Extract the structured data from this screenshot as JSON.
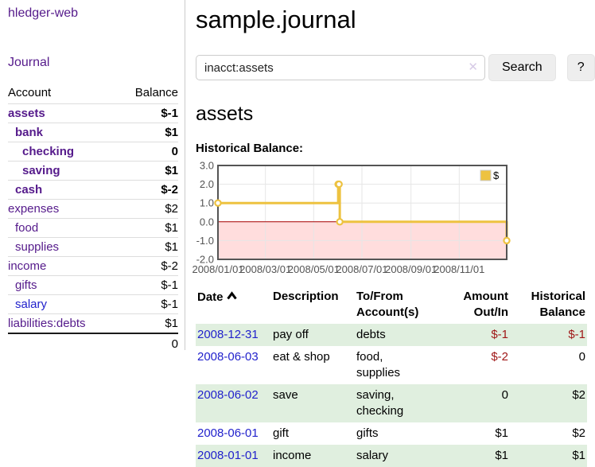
{
  "colors": {
    "accent_purple": "#551a8b",
    "link_blue": "#2222cc",
    "negative_dark": "#a01818",
    "negative_light": "#c46a6a",
    "row_green": "#e0efdf",
    "chart_line": "#edc240",
    "chart_negative_fill": "#ffdddd",
    "chart_zero_line": "#aa0000",
    "chart_border": "#545454",
    "chart_grid": "#e6e6e6",
    "axis_label": "#545454",
    "divider": "#dddddd"
  },
  "sidebar": {
    "brand": "hledger-web",
    "journal_link": "Journal",
    "header": {
      "account": "Account",
      "balance": "Balance"
    },
    "accounts": [
      {
        "name": "assets",
        "balance": "$-1",
        "depth": 1,
        "bold": true,
        "negative": true,
        "blue": false
      },
      {
        "name": "bank",
        "balance": "$1",
        "depth": 2,
        "bold": true,
        "negative": false,
        "blue": false
      },
      {
        "name": "checking",
        "balance": "0",
        "depth": 3,
        "bold": true,
        "negative": false,
        "blue": false
      },
      {
        "name": "saving",
        "balance": "$1",
        "depth": 3,
        "bold": true,
        "negative": false,
        "blue": false
      },
      {
        "name": "cash",
        "balance": "$-2",
        "depth": 2,
        "bold": true,
        "negative": true,
        "blue": false
      },
      {
        "name": "expenses",
        "balance": "$2",
        "depth": 1,
        "bold": false,
        "negative": false,
        "blue": false
      },
      {
        "name": "food",
        "balance": "$1",
        "depth": 2,
        "bold": false,
        "negative": false,
        "blue": false
      },
      {
        "name": "supplies",
        "balance": "$1",
        "depth": 2,
        "bold": false,
        "negative": false,
        "blue": false
      },
      {
        "name": "income",
        "balance": "$-2",
        "depth": 1,
        "bold": false,
        "negative": true,
        "blue": false
      },
      {
        "name": "gifts",
        "balance": "$-1",
        "depth": 2,
        "bold": false,
        "negative": true,
        "blue": false
      },
      {
        "name": "salary",
        "balance": "$-1",
        "depth": 2,
        "bold": false,
        "negative": true,
        "blue": true
      },
      {
        "name": "liabilities:debts",
        "balance": "$1",
        "depth": 1,
        "bold": false,
        "negative": false,
        "blue": false
      }
    ],
    "total": "0"
  },
  "main": {
    "title": "sample.journal",
    "search": {
      "value": "inacct:assets",
      "clear_icon": "✕",
      "search_label": "Search",
      "help_label": "?"
    },
    "account_title": "assets",
    "chart_heading": "Historical Balance:"
  },
  "chart_data": {
    "type": "line",
    "title": "Historical Balance",
    "step": true,
    "series": [
      {
        "name": "$",
        "points": [
          [
            "2008-01-01",
            1
          ],
          [
            "2008-06-01",
            2
          ],
          [
            "2008-06-02",
            2
          ],
          [
            "2008-06-03",
            0
          ],
          [
            "2008-12-31",
            -1
          ]
        ]
      }
    ],
    "x_range": [
      "2008-01-01",
      "2008-12-31"
    ],
    "x_ticks": [
      {
        "date": "2008-01-01",
        "label": "2008/01/01"
      },
      {
        "date": "2008-03-01",
        "label": "2008/03/01"
      },
      {
        "date": "2008-05-01",
        "label": "2008/05/01"
      },
      {
        "date": "2008-07-01",
        "label": "2008/07/01"
      },
      {
        "date": "2008-09-01",
        "label": "2008/09/01"
      },
      {
        "date": "2008-11-01",
        "label": "2008/11/01"
      }
    ],
    "y_ticks": [
      3.0,
      2.0,
      1.0,
      0.0,
      -1.0,
      -2.0
    ],
    "ylim": [
      -2,
      3
    ],
    "grid": true,
    "legend": {
      "position": "top-right",
      "label": "$"
    },
    "negative_region": true
  },
  "register": {
    "columns": [
      {
        "lines": [
          "Date"
        ],
        "align": "left",
        "sorted": "asc"
      },
      {
        "lines": [
          "Description"
        ],
        "align": "left"
      },
      {
        "lines": [
          "To/From",
          "Account(s)"
        ],
        "align": "left"
      },
      {
        "lines": [
          "Amount",
          "Out/In"
        ],
        "align": "right"
      },
      {
        "lines": [
          "Historical",
          "Balance"
        ],
        "align": "right"
      }
    ],
    "rows": [
      {
        "date": "2008-12-31",
        "description": "pay off",
        "accounts": "debts",
        "amount": "$-1",
        "amount_negative": true,
        "balance": "$-1",
        "balance_negative": true
      },
      {
        "date": "2008-06-03",
        "description": "eat & shop",
        "accounts": "food, supplies",
        "amount": "$-2",
        "amount_negative": true,
        "balance": "0",
        "balance_negative": false
      },
      {
        "date": "2008-06-02",
        "description": "save",
        "accounts": "saving, checking",
        "amount": "0",
        "amount_negative": false,
        "balance": "$2",
        "balance_negative": false
      },
      {
        "date": "2008-06-01",
        "description": "gift",
        "accounts": "gifts",
        "amount": "$1",
        "amount_negative": false,
        "balance": "$2",
        "balance_negative": false
      },
      {
        "date": "2008-01-01",
        "description": "income",
        "accounts": "salary",
        "amount": "$1",
        "amount_negative": false,
        "balance": "$1",
        "balance_negative": false
      }
    ]
  }
}
